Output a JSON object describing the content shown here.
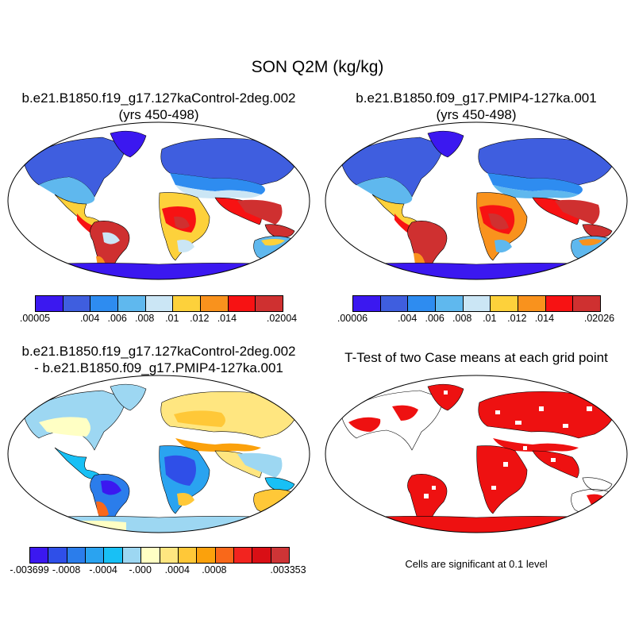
{
  "figure": {
    "title": "SON Q2M (kg/kg)",
    "panels": [
      {
        "title_line1": "b.e21.B1850.f19_g17.127kaControl-2deg.002",
        "title_line2": "(yrs 450-498)",
        "colorbar": {
          "colors": [
            "#3B18F0",
            "#3F5EDF",
            "#2E8CF0",
            "#5FB8EE",
            "#CBE6F5",
            "#FDD13B",
            "#F9921D",
            "#F71213",
            "#CF3030"
          ],
          "labels": [
            ".00005",
            ".004",
            ".006",
            ".008",
            ".01",
            ".012",
            ".014",
            ".02004"
          ],
          "label_edges": [
            0,
            2,
            3,
            4,
            5,
            6,
            7,
            9
          ]
        }
      },
      {
        "title_line1": "b.e21.B1850.f09_g17.PMIP4-127ka.001",
        "title_line2": "(yrs 450-498)",
        "colorbar": {
          "colors": [
            "#3B18F0",
            "#3F5EDF",
            "#2E8CF0",
            "#5FB8EE",
            "#CBE6F5",
            "#FDD13B",
            "#F9921D",
            "#F71213",
            "#CF3030"
          ],
          "labels": [
            ".00006",
            ".004",
            ".006",
            ".008",
            ".01",
            ".012",
            ".014",
            ".02026"
          ],
          "label_edges": [
            0,
            2,
            3,
            4,
            5,
            6,
            7,
            9
          ]
        }
      },
      {
        "title_line1": "b.e21.B1850.f19_g17.127kaControl-2deg.002",
        "title_line2": "- b.e21.B1850.f09_g17.PMIP4-127ka.001",
        "colorbar": {
          "colors": [
            "#3B18F0",
            "#2F4FE8",
            "#2B7DEB",
            "#2AA3F0",
            "#18C0F5",
            "#9DD7F2",
            "#FFFFC4",
            "#FFE680",
            "#FFC838",
            "#FBA10C",
            "#F9681A",
            "#F2241F",
            "#D90F15",
            "#CE3436"
          ],
          "labels": [
            "-.003699",
            "-.0008",
            "-.0004",
            "-.000",
            ".0004",
            ".0008",
            ".003353"
          ],
          "label_edges": [
            0,
            2,
            4,
            6,
            8,
            10,
            14
          ]
        }
      },
      {
        "title_line1": "T-Test of two Case means at each grid point",
        "note": "Cells are significant at 0.1 level"
      }
    ]
  }
}
